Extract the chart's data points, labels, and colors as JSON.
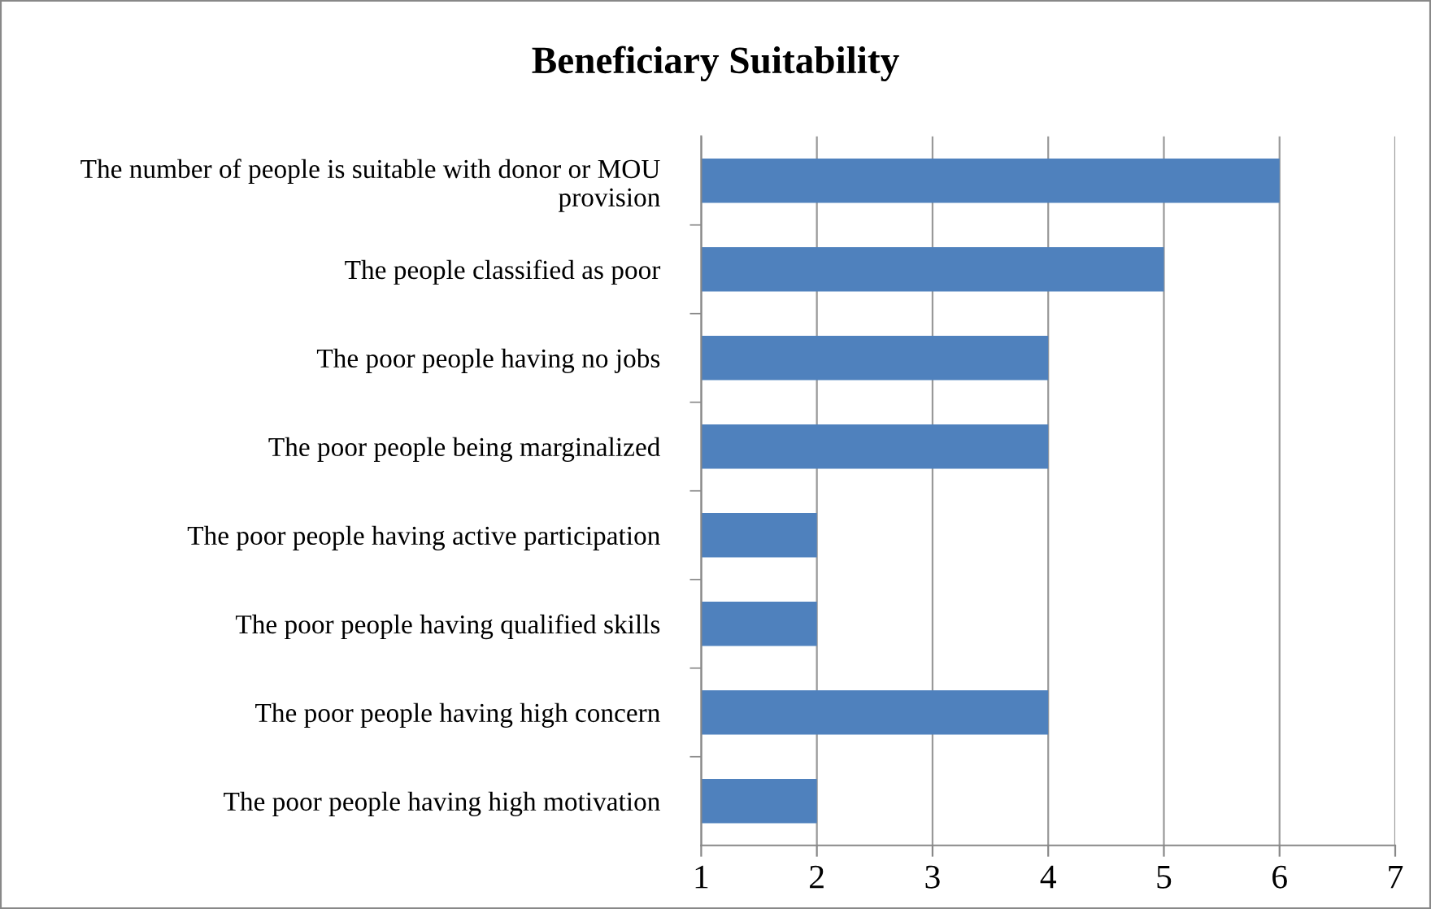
{
  "chart_data": {
    "type": "bar",
    "orientation": "horizontal",
    "title": "Beneficiary Suitability",
    "categories": [
      "The number of people is suitable with donor or MOU provision",
      "The people classified as poor",
      "The poor people having no jobs",
      "The poor people being marginalized",
      "The poor people having active participation",
      "The poor people having qualified skills",
      "The poor people having high concern",
      "The poor people having high motivation"
    ],
    "values": [
      6,
      5,
      4,
      4,
      2,
      2,
      4,
      2
    ],
    "color": "#4f81bd",
    "xlim": [
      1,
      7
    ],
    "xticks": [
      1,
      2,
      3,
      4,
      5,
      6,
      7
    ],
    "grid": "x",
    "legend": false
  }
}
